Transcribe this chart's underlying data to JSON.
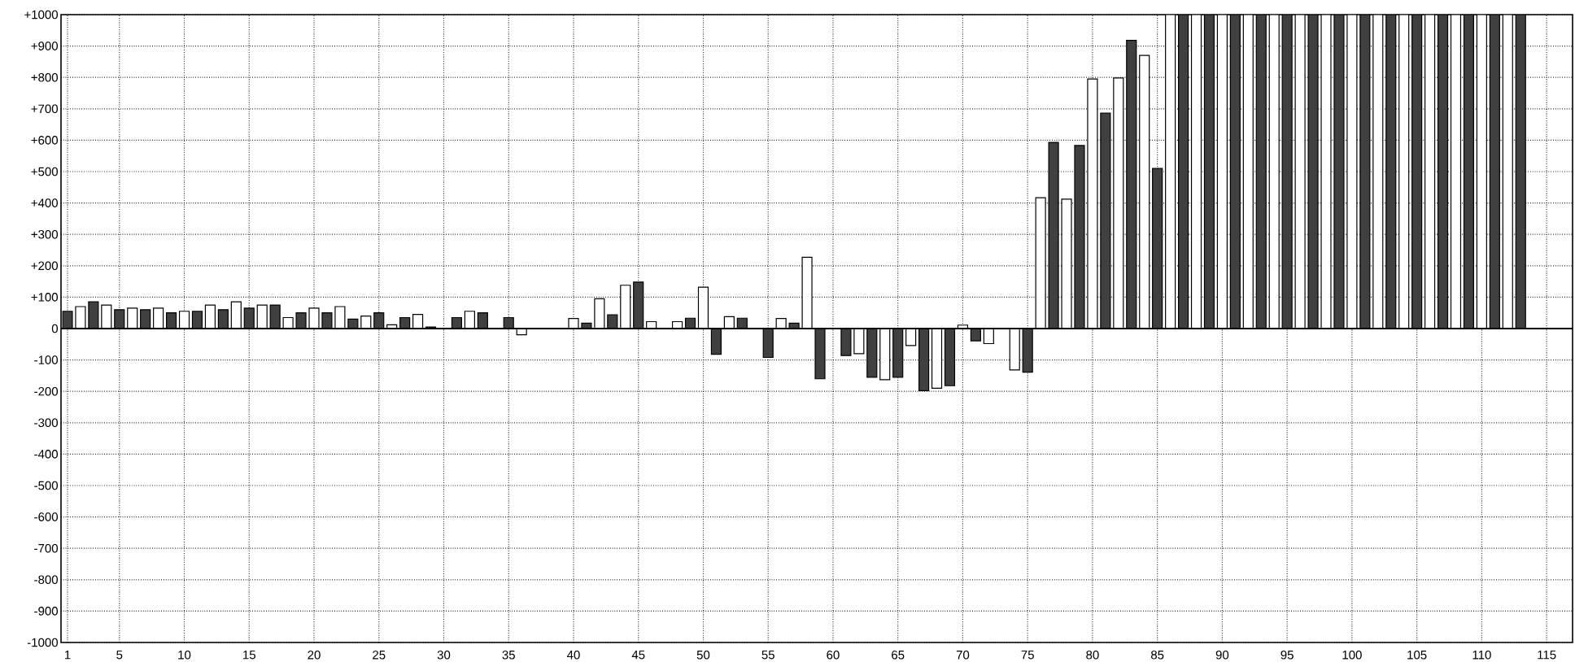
{
  "chart_data": {
    "type": "bar",
    "xlim": [
      0.5,
      117
    ],
    "xticks": [
      1,
      5,
      10,
      15,
      20,
      25,
      30,
      35,
      40,
      45,
      50,
      55,
      60,
      65,
      70,
      75,
      80,
      85,
      90,
      95,
      100,
      105,
      110,
      115
    ],
    "ylim": [
      -1000,
      1000
    ],
    "yticks": [
      -1000,
      -900,
      -800,
      -700,
      -600,
      -500,
      -400,
      -300,
      -200,
      -100,
      0,
      {
        "value": 100,
        "label": "+100"
      },
      {
        "value": 200,
        "label": "+200"
      },
      {
        "value": 300,
        "label": "+300"
      },
      {
        "value": 400,
        "label": "+400"
      },
      {
        "value": 500,
        "label": "+500"
      },
      {
        "value": 600,
        "label": "+600"
      },
      {
        "value": 700,
        "label": "+700"
      },
      {
        "value": 800,
        "label": "+800"
      },
      {
        "value": 900,
        "label": "+900"
      },
      {
        "value": 1000,
        "label": "+1000"
      }
    ],
    "grid": true,
    "series": [
      {
        "color": "#ffffff",
        "x": [
          2,
          4,
          6,
          8,
          10,
          12,
          14,
          16,
          18,
          20,
          22,
          24,
          26,
          28,
          30,
          32,
          34,
          36,
          38,
          40,
          42,
          44,
          46,
          48,
          50,
          52,
          54,
          56,
          58,
          60,
          62,
          64,
          66,
          68,
          70,
          72,
          74,
          76,
          78,
          80,
          82,
          84,
          86,
          88,
          90,
          92,
          94,
          96,
          98,
          100,
          102,
          104,
          106,
          108,
          110,
          112
        ],
        "values": [
          70,
          75,
          65,
          65,
          55,
          75,
          85,
          75,
          35,
          65,
          70,
          40,
          12,
          45,
          null,
          55,
          null,
          -20,
          null,
          32,
          95,
          138,
          22,
          22,
          132,
          38,
          null,
          32,
          227,
          null,
          -80,
          -163,
          -54,
          -190,
          11,
          -48,
          -132,
          417,
          412,
          795,
          798,
          870,
          1000,
          1000,
          1000,
          1000,
          1000,
          1000,
          1000,
          1000,
          1000,
          1000,
          1000,
          1000,
          1000,
          1000
        ]
      },
      {
        "color": "#404040",
        "x": [
          1,
          3,
          5,
          7,
          9,
          11,
          13,
          15,
          17,
          19,
          21,
          23,
          25,
          27,
          29,
          31,
          33,
          35,
          37,
          39,
          41,
          43,
          45,
          47,
          49,
          51,
          53,
          55,
          57,
          59,
          61,
          63,
          65,
          67,
          69,
          71,
          73,
          75,
          77,
          79,
          81,
          83,
          85,
          87,
          89,
          91,
          93,
          95,
          97,
          99,
          101,
          103,
          105,
          107,
          109,
          111,
          113
        ],
        "values": [
          55,
          85,
          60,
          60,
          50,
          55,
          60,
          65,
          75,
          50,
          50,
          30,
          50,
          35,
          5,
          35,
          50,
          35,
          null,
          null,
          17,
          44,
          148,
          null,
          33,
          -82,
          33,
          -92,
          17,
          -160,
          -86,
          -155,
          -155,
          -198,
          -182,
          -39,
          null,
          -139,
          593,
          583,
          686,
          918,
          510,
          1000,
          1000,
          1000,
          1000,
          1000,
          1000,
          1000,
          1000,
          1000,
          1000,
          1000,
          1000,
          1000,
          1000
        ]
      }
    ]
  }
}
